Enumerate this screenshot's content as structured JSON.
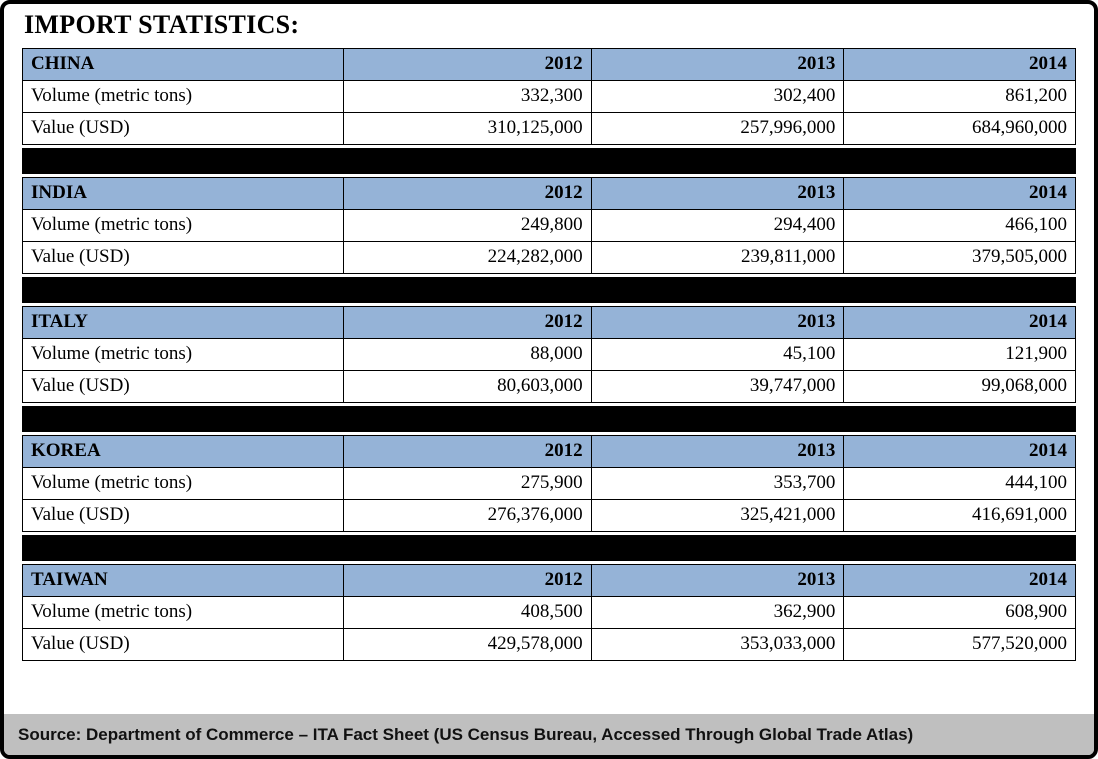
{
  "page": {
    "title": "IMPORT STATISTICS:",
    "source": "Source: Department of Commerce – ITA Fact Sheet  (US Census Bureau,  Accessed Through  Global Trade Atlas)"
  },
  "table": {
    "years": [
      "2012",
      "2013",
      "2014"
    ],
    "row_labels": {
      "volume": "Volume (metric tons)",
      "value": "Value (USD)"
    },
    "sections": [
      {
        "country": "CHINA",
        "volume": [
          "332,300",
          "302,400",
          "861,200"
        ],
        "value": [
          "310,125,000",
          "257,996,000",
          "684,960,000"
        ]
      },
      {
        "country": "INDIA",
        "volume": [
          "249,800",
          "294,400",
          "466,100"
        ],
        "value": [
          "224,282,000",
          "239,811,000",
          "379,505,000"
        ]
      },
      {
        "country": "ITALY",
        "volume": [
          "88,000",
          "45,100",
          "121,900"
        ],
        "value": [
          "80,603,000",
          "39,747,000",
          "99,068,000"
        ]
      },
      {
        "country": "KOREA",
        "volume": [
          "275,900",
          "353,700",
          "444,100"
        ],
        "value": [
          "276,376,000",
          "325,421,000",
          "416,691,000"
        ]
      },
      {
        "country": "TAIWAN",
        "volume": [
          "408,500",
          "362,900",
          "608,900"
        ],
        "value": [
          "429,578,000",
          "353,033,000",
          "577,520,000"
        ]
      }
    ]
  },
  "colors": {
    "header_bg": "#95B3D7",
    "separator": "#000000",
    "source_bg": "#BFBFBF",
    "frame_border": "#000000"
  }
}
